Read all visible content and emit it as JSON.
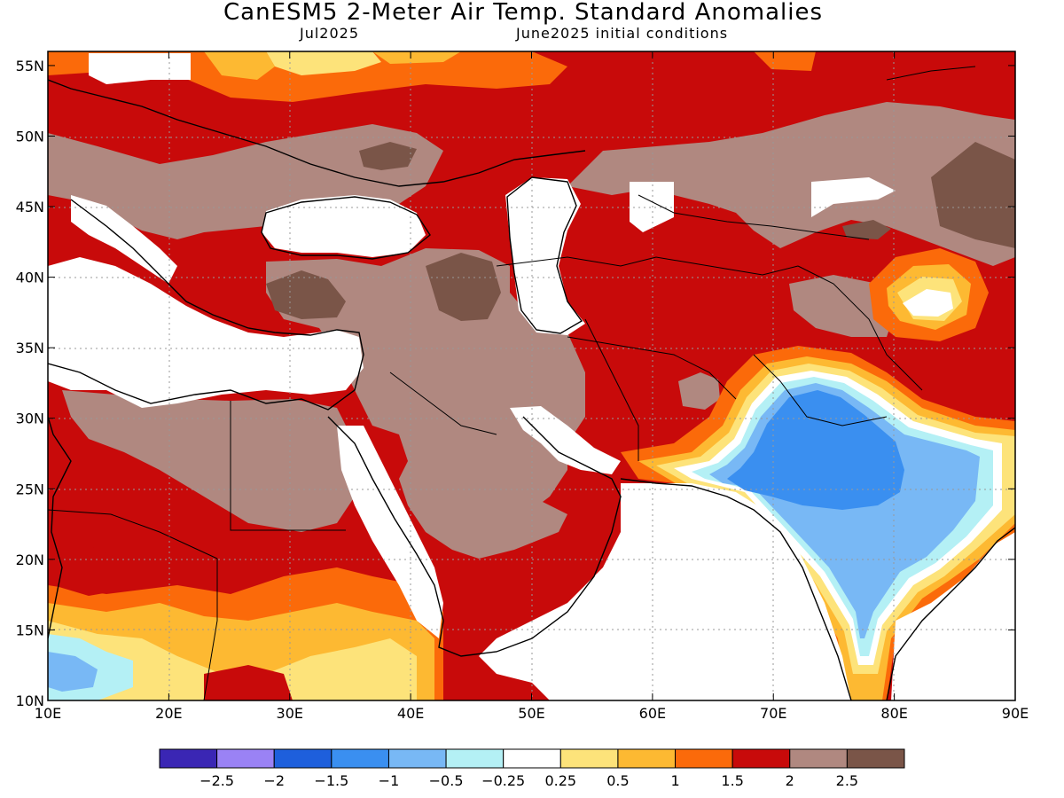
{
  "title": "CanESM5 2-Meter Air Temp. Standard Anomalies",
  "subtitle_left": "Jul2025",
  "subtitle_right": "June2025 initial conditions",
  "axes": {
    "x_ticks": [
      "10E",
      "20E",
      "30E",
      "40E",
      "50E",
      "60E",
      "70E",
      "80E",
      "90E"
    ],
    "y_ticks": [
      "55N",
      "50N",
      "45N",
      "40N",
      "35N",
      "30N",
      "25N",
      "20N",
      "15N",
      "10N"
    ],
    "lon_range": [
      10,
      90
    ],
    "lat_range": [
      10,
      56
    ],
    "grid": "dotted"
  },
  "colorbar": {
    "labels": [
      "−2.5",
      "−2",
      "−1.5",
      "−1",
      "−0.5",
      "−0.25",
      "0.25",
      "0.5",
      "1",
      "1.5",
      "2",
      "2.5"
    ],
    "colors": [
      "#3a26b4",
      "#9a82f5",
      "#1e5fdc",
      "#3a8ff0",
      "#78b8f5",
      "#b4f0f5",
      "#ffffff",
      "#fde37a",
      "#fdb932",
      "#fb6a0a",
      "#c80a0a",
      "#b08880",
      "#7a5548"
    ]
  },
  "map_colors": {
    "white": "#ffffff",
    "brown": "#b08880",
    "dark_brown": "#7a5548",
    "red": "#c80a0a",
    "orange": "#fb6a0a",
    "light_orange": "#fdb932",
    "yellow": "#fde37a",
    "light_blue": "#b4f0f5",
    "mid_blue": "#78b8f5",
    "blue": "#3a8ff0"
  }
}
